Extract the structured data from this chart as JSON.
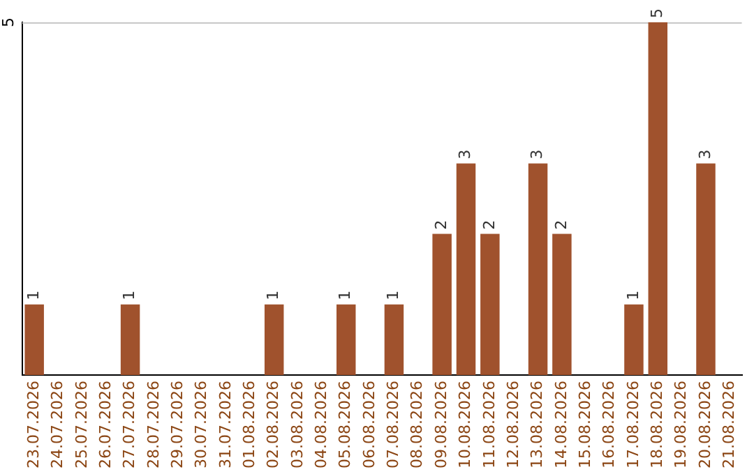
{
  "chart_data": {
    "type": "bar",
    "categories": [
      "23.07.2026",
      "24.07.2026",
      "25.07.2026",
      "26.07.2026",
      "27.07.2026",
      "28.07.2026",
      "29.07.2026",
      "30.07.2026",
      "31.07.2026",
      "01.08.2026",
      "02.08.2026",
      "03.08.2026",
      "04.08.2026",
      "05.08.2026",
      "06.08.2026",
      "07.08.2026",
      "08.08.2026",
      "09.08.2026",
      "10.08.2026",
      "11.08.2026",
      "12.08.2026",
      "13.08.2026",
      "14.08.2026",
      "15.08.2026",
      "16.08.2026",
      "17.08.2026",
      "18.08.2026",
      "19.08.2026",
      "20.08.2026",
      "21.08.2026"
    ],
    "values": [
      1,
      0,
      0,
      0,
      1,
      0,
      0,
      0,
      0,
      0,
      1,
      0,
      0,
      1,
      0,
      1,
      0,
      2,
      3,
      2,
      0,
      3,
      2,
      0,
      0,
      1,
      5,
      0,
      3,
      0
    ],
    "value_labels": [
      "1",
      null,
      null,
      null,
      "1",
      null,
      null,
      null,
      null,
      null,
      "1",
      null,
      null,
      "1",
      null,
      "1",
      null,
      "2",
      "3",
      "2",
      null,
      "3",
      "2",
      null,
      null,
      "1",
      "5",
      null,
      "3",
      null
    ],
    "color": "#a0522d",
    "ylim": [
      0,
      5
    ],
    "yticks": [
      5
    ],
    "legend": false
  }
}
